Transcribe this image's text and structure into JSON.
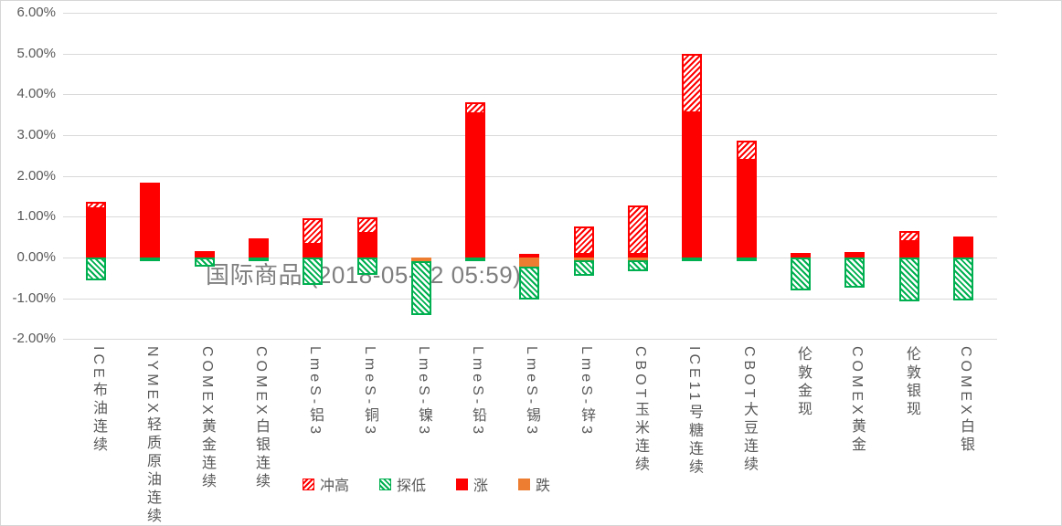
{
  "watermark": {
    "title": "国际商品 (2018-05-22 05:59)"
  },
  "legend": [
    {
      "label": "冲高",
      "style": "hatched-red"
    },
    {
      "label": "探低",
      "style": "hatched-green"
    },
    {
      "label": "涨",
      "style": "solid-red"
    },
    {
      "label": "跌",
      "style": "solid-orange"
    }
  ],
  "colors": {
    "rise_solid_red": "#ff0000",
    "fall_solid_orange": "#ed7d31",
    "surge_hatch_red": "#ff0000",
    "dip_hatch_green": "#00b050",
    "gridline": "#d9d9d9",
    "axis_text": "#595959",
    "watermark_text": "#7f7f7f"
  },
  "chart_data": {
    "type": "bar",
    "stacked": true,
    "title": "国际商品 (2018-05-22 05:59)",
    "xlabel": "",
    "ylabel": "",
    "ylim": [
      -2,
      6
    ],
    "grid": true,
    "legend_position": "bottom",
    "y_ticks": [
      "6.00%",
      "5.00%",
      "4.00%",
      "3.00%",
      "2.00%",
      "1.00%",
      "0.00%",
      "-1.00%",
      "-2.00%"
    ],
    "y_tick_values": [
      6,
      5,
      4,
      3,
      2,
      1,
      0,
      -1,
      -2
    ],
    "categories": [
      "ICE布油连续",
      "NYMEX轻质原油连续",
      "COMEX黄金连续",
      "COMEX白银连续",
      "LmeS-铝3",
      "LmeS-铜3",
      "LmeS-镍3",
      "LmeS-铅3",
      "LmeS-锡3",
      "LmeS-锌3",
      "CBOT玉米连续",
      "ICE11号糖连续",
      "CBOT大豆连续",
      "伦敦金现",
      "COMEX黄金",
      "伦敦银现",
      "COMEX白银"
    ],
    "series": [
      {
        "name": "冲高",
        "key": "surge_high_pct",
        "values": [
          1.37,
          1.84,
          0.16,
          0.46,
          0.96,
          0.99,
          0.0,
          3.8,
          0.09,
          0.76,
          1.27,
          4.99,
          2.86,
          0.11,
          0.14,
          0.65,
          0.51
        ]
      },
      {
        "name": "探低",
        "key": "dip_low_pct",
        "values": [
          -0.55,
          -0.06,
          -0.22,
          -0.06,
          -0.68,
          -0.42,
          -1.41,
          -0.04,
          -1.03,
          -0.44,
          -0.34,
          -0.05,
          -0.05,
          -0.81,
          -0.74,
          -1.07,
          -1.06
        ]
      },
      {
        "name": "涨",
        "key": "close_up_pct",
        "values": [
          1.19,
          1.84,
          0.16,
          0.46,
          0.31,
          0.58,
          0.0,
          3.52,
          0.09,
          0.06,
          0.06,
          3.53,
          2.37,
          0.11,
          0.14,
          0.39,
          0.51
        ]
      },
      {
        "name": "跌",
        "key": "close_down_pct",
        "values": [
          0,
          0,
          0,
          0,
          0,
          0,
          -0.1,
          0,
          -0.22,
          -0.07,
          -0.07,
          0,
          0,
          0,
          0,
          0,
          0
        ]
      }
    ]
  }
}
